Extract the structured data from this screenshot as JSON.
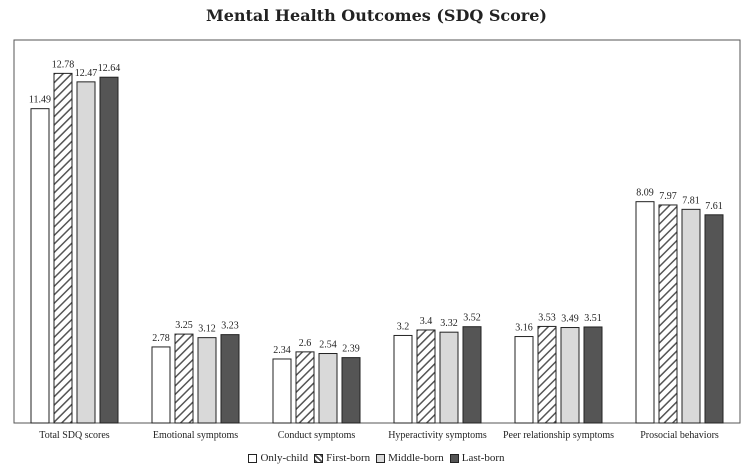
{
  "chart_data": {
    "type": "bar",
    "title": "Mental Health Outcomes (SDQ Score)",
    "categories": [
      "Total SDQ scores",
      "Emotional symptoms",
      "Conduct symptoms",
      "Hyperactivity symptoms",
      "Peer relationship symptoms",
      "Prosocial behaviors"
    ],
    "series": [
      {
        "name": "Only-child",
        "values": [
          11.49,
          2.78,
          2.34,
          3.2,
          3.16,
          8.09
        ]
      },
      {
        "name": "First-born",
        "values": [
          12.78,
          3.25,
          2.6,
          3.4,
          3.53,
          7.97
        ]
      },
      {
        "name": "Middle-born",
        "values": [
          12.47,
          3.12,
          2.54,
          3.32,
          3.49,
          7.81
        ]
      },
      {
        "name": "Last-born",
        "values": [
          12.64,
          3.23,
          2.39,
          3.52,
          3.51,
          7.61
        ]
      }
    ],
    "series_styles": [
      {
        "fill": "#ffffff",
        "pattern": "none"
      },
      {
        "fill": "#ffffff",
        "pattern": "diagonal-hatch",
        "hatch_color": "#555555"
      },
      {
        "fill": "#d9d9d9",
        "pattern": "none"
      },
      {
        "fill": "#555555",
        "pattern": "none"
      }
    ],
    "ylim": [
      0,
      14
    ],
    "xlabel": "",
    "ylabel": "",
    "grid": false,
    "legend_position": "bottom"
  }
}
